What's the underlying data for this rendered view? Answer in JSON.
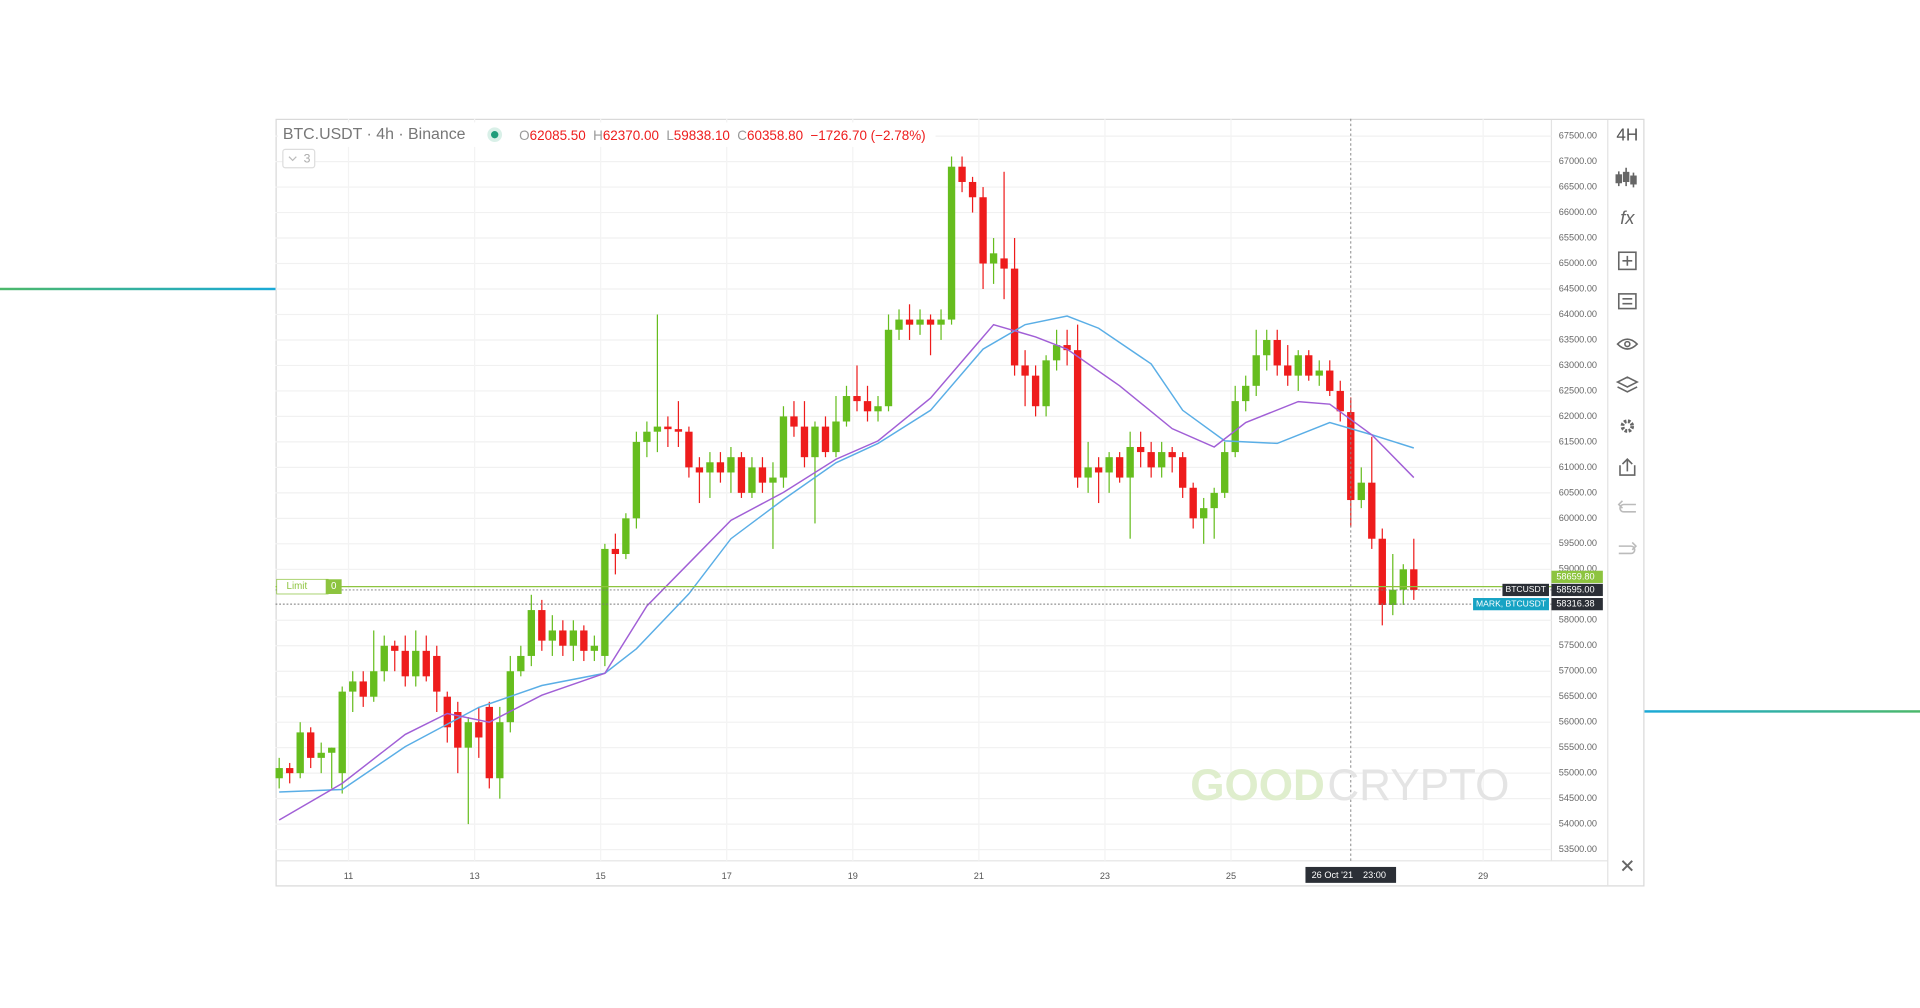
{
  "chart_data": {
    "type": "candlestick",
    "header": {
      "symbol": "BTC.USDT · 4h · Binance",
      "ohlc": [
        {
          "label": "O",
          "value": "62085.50"
        },
        {
          "label": "H",
          "value": "62370.00"
        },
        {
          "label": "L",
          "value": "59838.10"
        },
        {
          "label": "C",
          "value": "60358.80"
        }
      ],
      "change": "−1726.70 (−2.78%)"
    },
    "indicator_count": "3",
    "up_color": "#66bd1e",
    "down_color": "#ee1c1c",
    "xlim": [
      -0.35,
      121.1
    ],
    "ylim": [
      53280,
      67840
    ],
    "grid": true,
    "xticks": [
      {
        "value": 6.6,
        "label": "11"
      },
      {
        "value": 18.6,
        "label": "13"
      },
      {
        "value": 30.6,
        "label": "15"
      },
      {
        "value": 42.6,
        "label": "17"
      },
      {
        "value": 54.6,
        "label": "19"
      },
      {
        "value": 66.6,
        "label": "21"
      },
      {
        "value": 78.6,
        "label": "23"
      },
      {
        "value": 90.6,
        "label": "25"
      },
      {
        "value": 114.6,
        "label": "29"
      }
    ],
    "yticks": [
      {
        "value": 53500,
        "label": "53500.00"
      },
      {
        "value": 54000,
        "label": "54000.00"
      },
      {
        "value": 54500,
        "label": "54500.00"
      },
      {
        "value": 55000,
        "label": "55000.00"
      },
      {
        "value": 55500,
        "label": "55500.00"
      },
      {
        "value": 56000,
        "label": "56000.00"
      },
      {
        "value": 56500,
        "label": "56500.00"
      },
      {
        "value": 57000,
        "label": "57000.00"
      },
      {
        "value": 57500,
        "label": "57500.00"
      },
      {
        "value": 58000,
        "label": "58000.00"
      },
      {
        "value": 59000,
        "label": "59000.00"
      },
      {
        "value": 59500,
        "label": "59500.00"
      },
      {
        "value": 60000,
        "label": "60000.00"
      },
      {
        "value": 60500,
        "label": "60500.00"
      },
      {
        "value": 61000,
        "label": "61000.00"
      },
      {
        "value": 61500,
        "label": "61500.00"
      },
      {
        "value": 62000,
        "label": "62000.00"
      },
      {
        "value": 62500,
        "label": "62500.00"
      },
      {
        "value": 63000,
        "label": "63000.00"
      },
      {
        "value": 63500,
        "label": "63500.00"
      },
      {
        "value": 64000,
        "label": "64000.00"
      },
      {
        "value": 64500,
        "label": "64500.00"
      },
      {
        "value": 65000,
        "label": "65000.00"
      },
      {
        "value": 65500,
        "label": "65500.00"
      },
      {
        "value": 66000,
        "label": "66000.00"
      },
      {
        "value": 66500,
        "label": "66500.00"
      },
      {
        "value": 67000,
        "label": "67000.00"
      },
      {
        "value": 67500,
        "label": "67500.00"
      }
    ],
    "candles": [
      [
        54900,
        55300,
        54700,
        55100
      ],
      [
        55100,
        55200,
        54800,
        55000
      ],
      [
        55000,
        56000,
        54900,
        55800
      ],
      [
        55800,
        55900,
        55100,
        55300
      ],
      [
        55300,
        55600,
        55000,
        55400
      ],
      [
        55400,
        55500,
        54700,
        55500
      ],
      [
        55000,
        56700,
        54600,
        56600
      ],
      [
        56600,
        57000,
        56200,
        56800
      ],
      [
        56800,
        57000,
        56300,
        56500
      ],
      [
        56500,
        57800,
        56400,
        57000
      ],
      [
        57000,
        57700,
        56800,
        57500
      ],
      [
        57500,
        57600,
        57000,
        57400
      ],
      [
        57400,
        57700,
        56700,
        56900
      ],
      [
        56900,
        57800,
        56700,
        57400
      ],
      [
        57400,
        57700,
        56800,
        56900
      ],
      [
        57300,
        57500,
        56200,
        56600
      ],
      [
        56500,
        56600,
        55600,
        55900
      ],
      [
        56200,
        56400,
        55000,
        55500
      ],
      [
        55500,
        56100,
        54000,
        56000
      ],
      [
        56000,
        56300,
        55300,
        55700
      ],
      [
        56300,
        56400,
        54700,
        54900
      ],
      [
        54900,
        56300,
        54500,
        56000
      ],
      [
        56000,
        57300,
        55800,
        57000
      ],
      [
        57000,
        57500,
        56900,
        57300
      ],
      [
        57300,
        58500,
        57100,
        58200
      ],
      [
        58200,
        58400,
        57400,
        57600
      ],
      [
        57600,
        58100,
        57300,
        57800
      ],
      [
        57800,
        58000,
        57300,
        57500
      ],
      [
        57500,
        58000,
        57200,
        57800
      ],
      [
        57800,
        57900,
        57200,
        57400
      ],
      [
        57400,
        57700,
        57200,
        57500
      ],
      [
        57300,
        59500,
        57100,
        59400
      ],
      [
        59400,
        59700,
        58900,
        59300
      ],
      [
        59300,
        60100,
        59200,
        60000
      ],
      [
        60000,
        61700,
        59800,
        61500
      ],
      [
        61500,
        61900,
        61200,
        61700
      ],
      [
        61700,
        64000,
        61300,
        61800
      ],
      [
        61800,
        62000,
        61400,
        61750
      ],
      [
        61750,
        62300,
        61400,
        61700
      ],
      [
        61700,
        61800,
        60800,
        61000
      ],
      [
        61000,
        61200,
        60300,
        60900
      ],
      [
        60900,
        61300,
        60400,
        61100
      ],
      [
        61100,
        61300,
        60700,
        60900
      ],
      [
        60900,
        61400,
        60500,
        61200
      ],
      [
        61200,
        61300,
        60400,
        60500
      ],
      [
        60500,
        61200,
        60400,
        61000
      ],
      [
        61000,
        61200,
        60500,
        60700
      ],
      [
        60700,
        61100,
        59400,
        60800
      ],
      [
        60800,
        62200,
        60600,
        62000
      ],
      [
        62000,
        62300,
        61600,
        61800
      ],
      [
        61800,
        62300,
        61000,
        61200
      ],
      [
        61200,
        61900,
        59900,
        61800
      ],
      [
        61800,
        62000,
        61200,
        61300
      ],
      [
        61300,
        62400,
        61200,
        61900
      ],
      [
        61900,
        62600,
        61800,
        62400
      ],
      [
        62400,
        63000,
        62100,
        62300
      ],
      [
        62300,
        62600,
        61900,
        62100
      ],
      [
        62100,
        62400,
        61900,
        62200
      ],
      [
        62200,
        64000,
        62100,
        63700
      ],
      [
        63700,
        64100,
        63500,
        63900
      ],
      [
        63900,
        64200,
        63500,
        63800
      ],
      [
        63800,
        64100,
        63600,
        63900
      ],
      [
        63900,
        64000,
        63200,
        63800
      ],
      [
        63800,
        64100,
        63500,
        63900
      ],
      [
        63900,
        67100,
        63800,
        66900
      ],
      [
        66900,
        67100,
        66400,
        66600
      ],
      [
        66600,
        66700,
        66000,
        66300
      ],
      [
        66300,
        66500,
        64500,
        65000
      ],
      [
        65000,
        65500,
        64600,
        65200
      ],
      [
        65100,
        66800,
        64300,
        64900
      ],
      [
        64900,
        65500,
        62800,
        63000
      ],
      [
        63000,
        63300,
        62200,
        62800
      ],
      [
        62800,
        63000,
        62000,
        62200
      ],
      [
        62200,
        63200,
        62000,
        63100
      ],
      [
        63100,
        63700,
        62900,
        63400
      ],
      [
        63400,
        63700,
        63000,
        63300
      ],
      [
        63300,
        63800,
        60600,
        60800
      ],
      [
        60800,
        61500,
        60500,
        61000
      ],
      [
        61000,
        61200,
        60300,
        60900
      ],
      [
        60900,
        61300,
        60500,
        61200
      ],
      [
        61200,
        61300,
        60700,
        60800
      ],
      [
        60800,
        61700,
        59600,
        61400
      ],
      [
        61400,
        61700,
        61000,
        61300
      ],
      [
        61300,
        61500,
        60800,
        61000
      ],
      [
        61000,
        61500,
        60800,
        61300
      ],
      [
        61300,
        61400,
        60900,
        61200
      ],
      [
        61200,
        61300,
        60400,
        60600
      ],
      [
        60600,
        60700,
        59800,
        60000
      ],
      [
        60000,
        60400,
        59500,
        60200
      ],
      [
        60200,
        60600,
        59600,
        60500
      ],
      [
        60500,
        61500,
        60400,
        61300
      ],
      [
        61300,
        62600,
        61200,
        62300
      ],
      [
        62300,
        62800,
        62100,
        62600
      ],
      [
        62600,
        63700,
        62400,
        63200
      ],
      [
        63200,
        63700,
        62900,
        63500
      ],
      [
        63500,
        63700,
        62800,
        63000
      ],
      [
        63000,
        63400,
        62600,
        62800
      ],
      [
        62800,
        63300,
        62500,
        63200
      ],
      [
        63200,
        63300,
        62700,
        62800
      ],
      [
        62800,
        63100,
        62600,
        62900
      ],
      [
        62900,
        63100,
        62400,
        62500
      ],
      [
        62500,
        62700,
        61900,
        62100
      ],
      [
        62085.5,
        62370,
        59838.1,
        60358.8
      ],
      [
        60358.8,
        61000,
        60200,
        60700
      ],
      [
        60700,
        61600,
        59400,
        59600
      ],
      [
        59600,
        59800,
        57900,
        58300
      ],
      [
        58300,
        59300,
        58100,
        58600
      ],
      [
        58600,
        59100,
        58300,
        59000
      ],
      [
        59000,
        59600,
        58400,
        58595
      ]
    ],
    "lines": [
      {
        "color": "#5aaee6",
        "x": [
          0,
          6,
          12,
          19,
          25,
          31,
          34,
          39,
          43,
          48,
          53,
          57,
          62,
          67,
          71,
          75,
          78,
          83,
          86,
          90,
          95,
          100,
          104,
          108
        ],
        "values": [
          54630,
          54680,
          55520,
          56290,
          56720,
          56960,
          57440,
          58520,
          59600,
          60370,
          61090,
          61470,
          62120,
          63320,
          63800,
          63970,
          63730,
          63030,
          62120,
          61520,
          61470,
          61880,
          61640,
          61380
        ]
      },
      {
        "color": "#a15fd6",
        "x": [
          0,
          6,
          12,
          16,
          20,
          25,
          31,
          35,
          39,
          43,
          48,
          53,
          57,
          62,
          66,
          68,
          72,
          75,
          80,
          85,
          89,
          92,
          97,
          100,
          104,
          108
        ],
        "values": [
          54080,
          54800,
          55760,
          56170,
          56000,
          56530,
          56960,
          58280,
          59120,
          59960,
          60510,
          61160,
          61520,
          62360,
          63320,
          63800,
          63560,
          63320,
          62600,
          61760,
          61400,
          61880,
          62290,
          62240,
          61640,
          60800
        ]
      }
    ],
    "limit_order": {
      "name": "Limit",
      "quantity": "0",
      "value": 58659.8,
      "label": "58659.80",
      "color": "#8dc43f"
    },
    "last_price": {
      "name": "BTCUSDT",
      "value": 58595,
      "label": "58595.00",
      "color": "#2b2f36"
    },
    "mark_price": {
      "name": "MARK, BTCUSDT",
      "value": 58316.38,
      "label": "58316.38",
      "color": "#16a3c4"
    },
    "crosshair": {
      "x": 102,
      "date": "26 Oct '21",
      "time": "23:00"
    },
    "timeframe": "4H",
    "watermark": {
      "left": "GOOD",
      "right": "CRYPTO"
    }
  }
}
